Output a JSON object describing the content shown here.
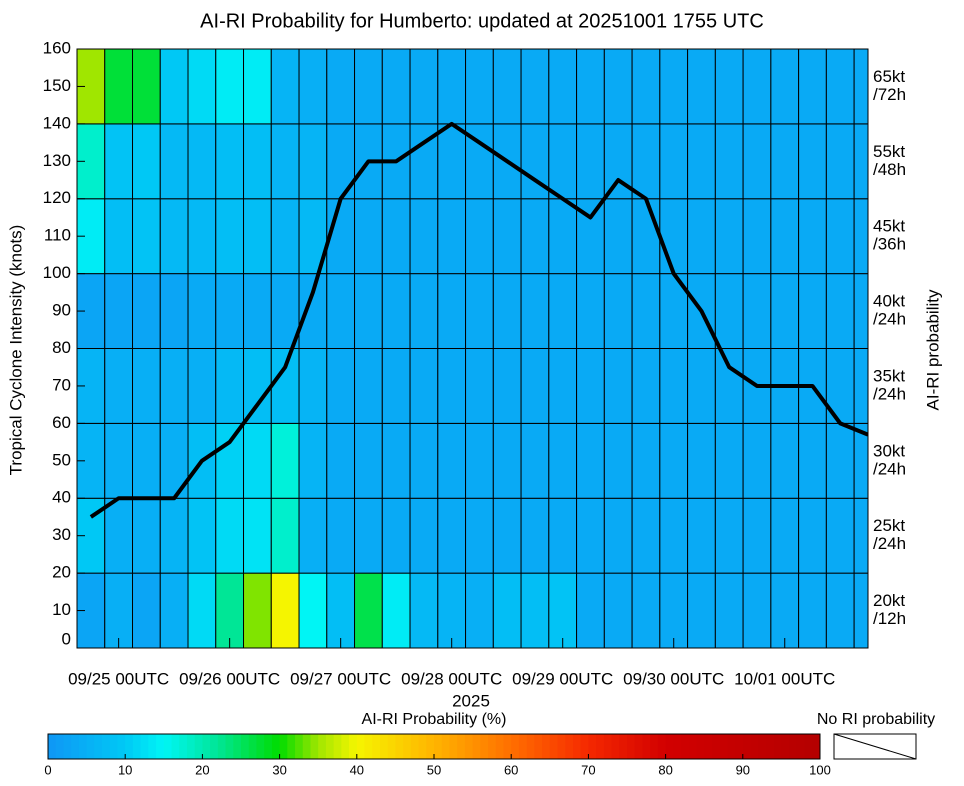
{
  "chart_data": {
    "type": "heatmap",
    "title": "AI-RI Probability for Humberto: updated at 20251001 1755 UTC",
    "ylabel": "Tropical Cyclone Intensity (knots)",
    "xlabel": "2025",
    "y2label": "AI-RI probability",
    "colorbar_label": "AI-RI Probability (%)",
    "no_data_label": "No RI probability",
    "x": [
      "2025-09-24T18:00",
      "2025-09-25T00:00",
      "2025-09-25T06:00",
      "2025-09-25T12:00",
      "2025-09-25T18:00",
      "2025-09-26T00:00",
      "2025-09-26T06:00",
      "2025-09-26T12:00",
      "2025-09-26T18:00",
      "2025-09-27T00:00",
      "2025-09-27T06:00",
      "2025-09-27T12:00",
      "2025-09-27T18:00",
      "2025-09-28T00:00",
      "2025-09-28T06:00",
      "2025-09-28T12:00",
      "2025-09-28T18:00",
      "2025-09-29T00:00",
      "2025-09-29T06:00",
      "2025-09-29T12:00",
      "2025-09-29T18:00",
      "2025-09-30T00:00",
      "2025-09-30T06:00",
      "2025-09-30T12:00",
      "2025-09-30T18:00",
      "2025-10-01T00:00",
      "2025-10-01T06:00",
      "2025-10-01T12:00",
      "2025-10-01T18:00"
    ],
    "xlim": [
      "2025-09-24T15:00",
      "2025-10-01T18:00"
    ],
    "xticks": [
      {
        "value": "2025-09-25T00:00",
        "label": "09/25 00UTC"
      },
      {
        "value": "2025-09-26T00:00",
        "label": "09/26 00UTC"
      },
      {
        "value": "2025-09-27T00:00",
        "label": "09/27 00UTC"
      },
      {
        "value": "2025-09-28T00:00",
        "label": "09/28 00UTC"
      },
      {
        "value": "2025-09-29T00:00",
        "label": "09/29 00UTC"
      },
      {
        "value": "2025-09-30T00:00",
        "label": "09/30 00UTC"
      },
      {
        "value": "2025-10-01T00:00",
        "label": "10/01 00UTC"
      }
    ],
    "ylim": [
      0,
      160
    ],
    "yticks": [
      0,
      10,
      20,
      30,
      40,
      50,
      60,
      70,
      80,
      90,
      100,
      110,
      120,
      130,
      140,
      150,
      160
    ],
    "ybins": [
      0,
      20,
      40,
      60,
      80,
      100,
      120,
      140,
      160
    ],
    "row_labels": [
      [
        "20kt",
        "/12h"
      ],
      [
        "25kt",
        "/24h"
      ],
      [
        "30kt",
        "/24h"
      ],
      [
        "35kt",
        "/24h"
      ],
      [
        "40kt",
        "/24h"
      ],
      [
        "45kt",
        "/36h"
      ],
      [
        "55kt",
        "/48h"
      ],
      [
        "65kt",
        "/72h"
      ]
    ],
    "z": [
      [
        3,
        5,
        3,
        5,
        12,
        22,
        34,
        40,
        15,
        8,
        26,
        14,
        7,
        6,
        5,
        8,
        8,
        9,
        4,
        4,
        4,
        4,
        4,
        4,
        4,
        4,
        4,
        4,
        4
      ],
      [
        10,
        5,
        5,
        6,
        9,
        12,
        13,
        18,
        5,
        4,
        4,
        4,
        4,
        4,
        4,
        4,
        4,
        4,
        4,
        4,
        4,
        4,
        4,
        4,
        4,
        4,
        4,
        4,
        4
      ],
      [
        6,
        5,
        5,
        5,
        8,
        11,
        12,
        17,
        6,
        4,
        4,
        4,
        4,
        4,
        4,
        4,
        4,
        4,
        4,
        4,
        4,
        4,
        4,
        4,
        4,
        4,
        4,
        4,
        4
      ],
      [
        6,
        5,
        5,
        5,
        5,
        7,
        8,
        8,
        6,
        4,
        4,
        4,
        4,
        4,
        4,
        4,
        4,
        4,
        4,
        4,
        4,
        4,
        4,
        4,
        4,
        4,
        4,
        4,
        4
      ],
      [
        3,
        3,
        3,
        3,
        4,
        4,
        4,
        4,
        4,
        4,
        4,
        4,
        4,
        4,
        4,
        4,
        4,
        4,
        4,
        4,
        4,
        4,
        4,
        4,
        4,
        4,
        4,
        4,
        4
      ],
      [
        14,
        8,
        9,
        7,
        7,
        8,
        8,
        6,
        7,
        4,
        4,
        4,
        4,
        4,
        4,
        4,
        4,
        4,
        4,
        4,
        4,
        4,
        4,
        4,
        4,
        4,
        4,
        4,
        4
      ],
      [
        18,
        9,
        10,
        7,
        7,
        8,
        8,
        6,
        6,
        4,
        4,
        4,
        4,
        4,
        4,
        4,
        4,
        4,
        4,
        4,
        4,
        4,
        4,
        4,
        4,
        4,
        4,
        4,
        4
      ],
      [
        35,
        27,
        27,
        10,
        12,
        14,
        14,
        6,
        5,
        4,
        4,
        4,
        4,
        4,
        4,
        4,
        4,
        4,
        4,
        4,
        4,
        4,
        4,
        4,
        4,
        4,
        4,
        4,
        4
      ]
    ],
    "line": {
      "color": "#000000",
      "values": [
        35,
        40,
        40,
        40,
        50,
        55,
        65,
        75,
        95,
        120,
        130,
        130,
        135,
        140,
        135,
        130,
        125,
        120,
        115,
        125,
        120,
        100,
        90,
        75,
        70,
        70,
        70,
        60,
        57
      ]
    },
    "colorscale": [
      [
        0,
        "#0f96f5"
      ],
      [
        10,
        "#00c8f5"
      ],
      [
        15,
        "#00f5f5"
      ],
      [
        22,
        "#00e696"
      ],
      [
        30,
        "#00dc00"
      ],
      [
        35,
        "#a0e600"
      ],
      [
        40,
        "#f5f500"
      ],
      [
        50,
        "#ffb400"
      ],
      [
        60,
        "#ff6e00"
      ],
      [
        70,
        "#f52800"
      ],
      [
        80,
        "#d20000"
      ],
      [
        100,
        "#b40000"
      ]
    ],
    "cblim": [
      0,
      100
    ],
    "cbticks": [
      0,
      10,
      20,
      30,
      40,
      50,
      60,
      70,
      80,
      90,
      100
    ]
  }
}
